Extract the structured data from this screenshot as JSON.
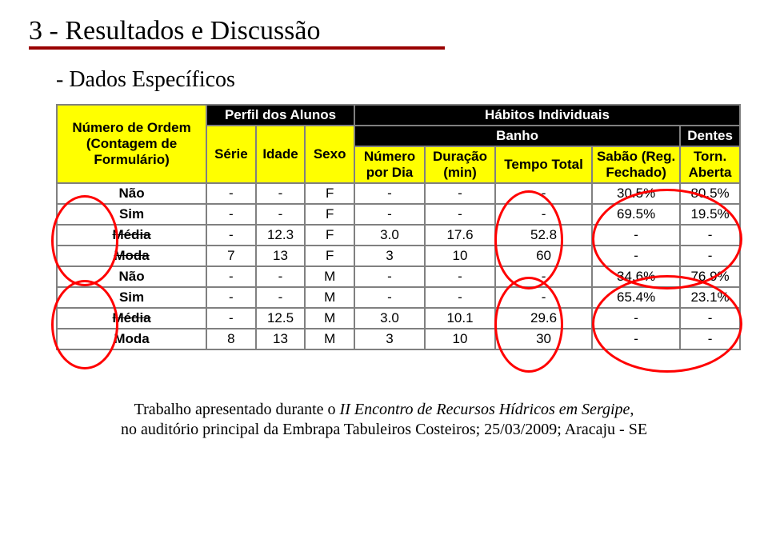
{
  "title": "3 - Resultados e Discussão",
  "subtitle": "- Dados Específicos",
  "super_headers": {
    "perfil": "Perfil dos Alunos",
    "habitos": "Hábitos Individuais",
    "banho": "Banho",
    "dentes": "Dentes"
  },
  "headers": {
    "ordem": "Número de Ordem (Contagem de Formulário)",
    "serie": "Série",
    "idade": "Idade",
    "sexo": "Sexo",
    "num_dia": "Número por Dia",
    "duracao": "Duração (min)",
    "tempo_total": "Tempo Total",
    "sabao": "Sabão (Reg. Fechado)",
    "torn": "Torn. Aberta"
  },
  "rows": [
    {
      "label": "Não",
      "serie": "-",
      "idade": "-",
      "sexo": "F",
      "num_dia": "-",
      "dur": "-",
      "tt": "-",
      "sabao": "30.5%",
      "torn": "80.5%",
      "strike": false
    },
    {
      "label": "Sim",
      "serie": "-",
      "idade": "-",
      "sexo": "F",
      "num_dia": "-",
      "dur": "-",
      "tt": "-",
      "sabao": "69.5%",
      "torn": "19.5%",
      "strike": false
    },
    {
      "label": "Média",
      "serie": "-",
      "idade": "12.3",
      "sexo": "F",
      "num_dia": "3.0",
      "dur": "17.6",
      "tt": "52.8",
      "sabao": "-",
      "torn": "-",
      "strike": true
    },
    {
      "label": "Moda",
      "serie": "7",
      "idade": "13",
      "sexo": "F",
      "num_dia": "3",
      "dur": "10",
      "tt": "60",
      "sabao": "-",
      "torn": "-",
      "strike": true
    },
    {
      "label": "Não",
      "serie": "-",
      "idade": "-",
      "sexo": "M",
      "num_dia": "-",
      "dur": "-",
      "tt": "-",
      "sabao": "34.6%",
      "torn": "76.9%",
      "strike": false
    },
    {
      "label": "Sim",
      "serie": "-",
      "idade": "-",
      "sexo": "M",
      "num_dia": "-",
      "dur": "-",
      "tt": "-",
      "sabao": "65.4%",
      "torn": "23.1%",
      "strike": false
    },
    {
      "label": "Média",
      "serie": "-",
      "idade": "12.5",
      "sexo": "M",
      "num_dia": "3.0",
      "dur": "10.1",
      "tt": "29.6",
      "sabao": "-",
      "torn": "-",
      "strike": true
    },
    {
      "label": "Moda",
      "serie": "8",
      "idade": "13",
      "sexo": "M",
      "num_dia": "3",
      "dur": "10",
      "tt": "30",
      "sabao": "-",
      "torn": "-",
      "strike": false
    }
  ],
  "footer": {
    "line1_a": "Trabalho apresentado durante o ",
    "line1_b": "II Encontro de Recursos Hídricos em Sergipe",
    "line1_c": ",",
    "line2": "no auditório principal da Embrapa Tabuleiros Costeiros; 25/03/2009; Aracaju - SE"
  },
  "colors": {
    "underline": "#990000",
    "header_bg": "#ffff00",
    "super_bg": "#000000",
    "super_fg": "#ffffff",
    "border": "#808080",
    "ellipse": "#ff0000"
  }
}
